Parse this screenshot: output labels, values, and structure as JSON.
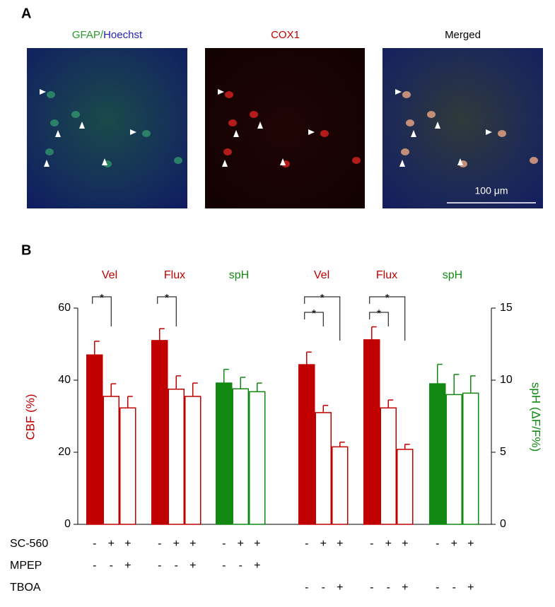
{
  "panel_a": {
    "label": "A",
    "images": [
      {
        "title_parts": [
          {
            "text": "GFAP",
            "color": "#2a9a2a"
          },
          {
            "text": "/",
            "color": "#2a9a2a"
          },
          {
            "text": "Hoechst",
            "color": "#2222bb"
          }
        ]
      },
      {
        "title_parts": [
          {
            "text": "COX1",
            "color": "#c00000"
          }
        ]
      },
      {
        "title_parts": [
          {
            "text": "Merged",
            "color": "#000000"
          }
        ]
      }
    ],
    "scale_bar": "100 μm"
  },
  "chart_data": {
    "type": "grouped-bar",
    "label": "B",
    "ylabel": "CBF (%)",
    "ylabel_color": "#c00000",
    "y2label": "spH (ΔF/F%)",
    "y2label_color": "#118811",
    "ylim": [
      0,
      60
    ],
    "yticks": [
      0,
      20,
      40,
      60
    ],
    "y2lim": [
      0,
      15
    ],
    "y2ticks": [
      0,
      5,
      10,
      15
    ],
    "bar_fill": [
      "solid",
      "open",
      "open"
    ],
    "groups": [
      {
        "label": "Vel",
        "color": "#c00000",
        "axis": "y",
        "values": [
          47,
          35.5,
          32.3
        ],
        "errors": [
          3.8,
          3.5,
          3.2
        ]
      },
      {
        "label": "Flux",
        "color": "#c00000",
        "axis": "y",
        "values": [
          51,
          37.5,
          35.5
        ],
        "errors": [
          3.3,
          3.7,
          3.7
        ]
      },
      {
        "label": "spH",
        "color": "#118811",
        "axis": "y2",
        "values": [
          9.8,
          9.4,
          9.2
        ],
        "errors": [
          0.95,
          0.8,
          0.6
        ]
      },
      {
        "label": "Vel",
        "color": "#c00000",
        "axis": "y",
        "values": [
          44.3,
          31,
          21.5
        ],
        "errors": [
          3.5,
          2,
          1.3
        ]
      },
      {
        "label": "Flux",
        "color": "#c00000",
        "axis": "y",
        "values": [
          51.2,
          32.3,
          20.8
        ],
        "errors": [
          3.6,
          2.2,
          1.4
        ]
      },
      {
        "label": "spH",
        "color": "#118811",
        "axis": "y2",
        "values": [
          9.75,
          9.0,
          9.1
        ],
        "errors": [
          1.35,
          1.4,
          1.2
        ]
      }
    ],
    "comparisons": [
      {
        "group": 0,
        "bars": [
          0,
          1
        ],
        "label": "*"
      },
      {
        "group": 1,
        "bars": [
          0,
          1
        ],
        "label": "*"
      },
      {
        "group": 3,
        "bars": [
          0,
          1
        ],
        "label": "*"
      },
      {
        "group": 3,
        "bars": [
          0,
          2
        ],
        "label": "*"
      },
      {
        "group": 4,
        "bars": [
          0,
          1
        ],
        "label": "*"
      },
      {
        "group": 4,
        "bars": [
          0,
          2
        ],
        "label": "*"
      }
    ],
    "conditions": [
      {
        "label": "SC-560",
        "marks": [
          "-",
          "+",
          "+",
          "-",
          "+",
          "+",
          "-",
          "+",
          "+",
          "-",
          "+",
          "+",
          "-",
          "+",
          "+",
          "-",
          "+",
          "+"
        ]
      },
      {
        "label": "MPEP",
        "marks": [
          "-",
          "-",
          "+",
          "-",
          "-",
          "+",
          "-",
          "-",
          "+",
          null,
          null,
          null,
          null,
          null,
          null,
          null,
          null,
          null
        ]
      },
      {
        "label": "TBOA",
        "marks": [
          null,
          null,
          null,
          null,
          null,
          null,
          null,
          null,
          null,
          "-",
          "-",
          "+",
          "-",
          "-",
          "+",
          "-",
          "-",
          "+"
        ]
      }
    ]
  }
}
